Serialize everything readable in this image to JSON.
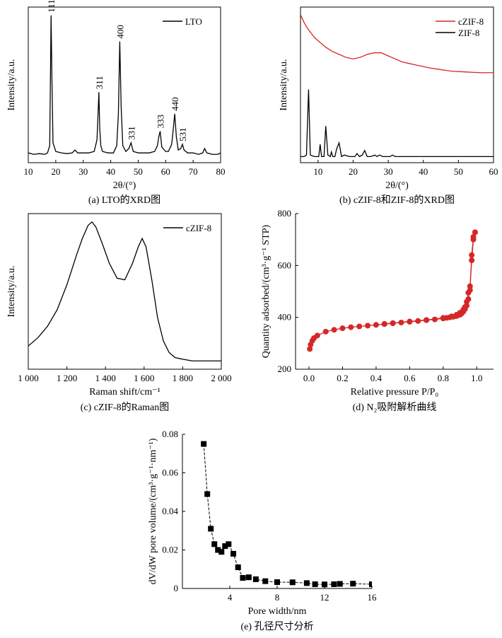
{
  "colors": {
    "axis": "#000000",
    "black_series": "#000000",
    "red_series": "#d62728"
  },
  "chart_data": [
    {
      "id": "a",
      "type": "line",
      "caption": "(a) LTO的XRD图",
      "xlabel": "2θ/(°)",
      "ylabel": "Intensity/a.u.",
      "xlim": [
        10,
        80
      ],
      "xticks": [
        10,
        20,
        30,
        40,
        50,
        60,
        70,
        80
      ],
      "y_ticks_shown": false,
      "legend": {
        "position": "top-right",
        "entries": [
          "LTO"
        ]
      },
      "series": [
        {
          "name": "LTO",
          "color": "#000000",
          "x": [
            10,
            12,
            14,
            16,
            17,
            17.8,
            18.3,
            18.6,
            19,
            20,
            22,
            24,
            26,
            27,
            28,
            30,
            32,
            34,
            35,
            35.4,
            35.7,
            36,
            36.4,
            37,
            39,
            41,
            42.2,
            42.8,
            43.3,
            43.8,
            44.4,
            45.5,
            46.6,
            47.4,
            48.2,
            50,
            52,
            54,
            56,
            57,
            57.5,
            58,
            58.6,
            60,
            61,
            62.2,
            62.8,
            63.3,
            63.9,
            64.6,
            65.5,
            66.1,
            66.7,
            68,
            70,
            72,
            73.5,
            74.2,
            75,
            77,
            79,
            80
          ],
          "y": [
            3,
            2,
            2.5,
            2,
            3,
            8,
            98,
            55,
            10,
            4,
            3,
            2.5,
            3,
            5,
            3,
            3,
            3,
            4,
            12,
            30,
            45,
            20,
            8,
            4,
            3,
            3,
            8,
            30,
            80,
            35,
            8,
            4,
            6,
            10,
            4,
            3,
            3,
            3,
            4,
            8,
            14,
            18,
            7,
            4,
            4,
            9,
            20,
            30,
            14,
            5,
            6,
            9,
            5,
            3,
            3,
            2,
            3,
            6,
            3,
            2,
            2,
            3
          ]
        }
      ],
      "annotations": [
        {
          "text": "111",
          "x": 18.3,
          "y": 98
        },
        {
          "text": "311",
          "x": 35.7,
          "y": 45
        },
        {
          "text": "400",
          "x": 43.3,
          "y": 80
        },
        {
          "text": "331",
          "x": 47.4,
          "y": 10
        },
        {
          "text": "333",
          "x": 58,
          "y": 18
        },
        {
          "text": "440",
          "x": 63.3,
          "y": 30
        },
        {
          "text": "531",
          "x": 66.1,
          "y": 9
        }
      ]
    },
    {
      "id": "b",
      "type": "line",
      "caption": "(b) cZIF-8和ZIF-8的XRD图",
      "xlabel": "2θ/(°)",
      "ylabel": "Intensity/a.u.",
      "xlim": [
        5,
        60
      ],
      "xticks": [
        10,
        20,
        30,
        40,
        50,
        60
      ],
      "y_ticks_shown": false,
      "legend": {
        "position": "top-right",
        "entries": [
          "cZIF-8",
          "ZIF-8"
        ]
      },
      "series": [
        {
          "name": "cZIF-8",
          "color": "#d62728",
          "x": [
            5,
            6,
            7,
            8,
            9,
            10,
            12,
            14,
            16,
            18,
            20,
            22,
            24,
            26,
            28,
            30,
            32,
            34,
            36,
            38,
            40,
            42,
            45,
            48,
            52,
            56,
            60
          ],
          "y": [
            95,
            90,
            86,
            83,
            80,
            78,
            74,
            71,
            69,
            67,
            66,
            67,
            69,
            70,
            70,
            68,
            66,
            64,
            63,
            62,
            61,
            60,
            59,
            58,
            57.5,
            57,
            57
          ]
        },
        {
          "name": "ZIF-8",
          "color": "#000000",
          "x": [
            5,
            6,
            6.7,
            7.3,
            7.8,
            9,
            10.2,
            10.6,
            11,
            11.7,
            12.2,
            12.8,
            13.5,
            13.8,
            14.2,
            14.8,
            15.3,
            16,
            16.7,
            17.5,
            19,
            20.5,
            21.1,
            21.8,
            22.6,
            23.3,
            24,
            25,
            26.2,
            26.8,
            27.5,
            28.5,
            29.5,
            30.5,
            31.2,
            32,
            35,
            40,
            45,
            50,
            55,
            60
          ],
          "y": [
            2,
            2,
            3,
            46,
            3,
            2,
            2,
            10,
            2,
            2,
            22,
            3,
            2,
            5,
            2,
            2,
            7,
            11,
            2,
            3,
            2,
            2,
            4,
            2,
            3,
            6,
            2,
            2,
            3,
            2,
            3,
            2,
            2,
            2,
            3,
            2,
            2,
            2,
            2,
            2,
            2,
            2
          ]
        }
      ]
    },
    {
      "id": "c",
      "type": "line",
      "caption": "(c) cZIF-8的Raman图",
      "xlabel": "Raman shift/cm⁻¹",
      "ylabel": "Intensity/a.u.",
      "xlim": [
        1000,
        2000
      ],
      "xticks": [
        1000,
        1200,
        1400,
        1600,
        1800,
        2000
      ],
      "xtick_labels": [
        "1 000",
        "1 200",
        "1 400",
        "1 600",
        "1 800",
        "2 000"
      ],
      "y_ticks_shown": false,
      "legend": {
        "position": "top-right",
        "entries": [
          "cZIF-8"
        ]
      },
      "series": [
        {
          "name": "cZIF-8",
          "color": "#000000",
          "x": [
            1000,
            1050,
            1100,
            1150,
            1200,
            1250,
            1280,
            1310,
            1330,
            1350,
            1380,
            1420,
            1460,
            1500,
            1540,
            1570,
            1590,
            1610,
            1640,
            1670,
            1700,
            1730,
            1760,
            1800,
            1850,
            1900,
            1950,
            2000
          ],
          "y": [
            15,
            20,
            27,
            37,
            52,
            70,
            80,
            88,
            90,
            87,
            78,
            65,
            56,
            55,
            65,
            75,
            80,
            75,
            55,
            32,
            18,
            11,
            8,
            7,
            6,
            6,
            6,
            6
          ]
        }
      ]
    },
    {
      "id": "d",
      "type": "scatter",
      "caption": "(d) N₂吸附解析曲线",
      "xlabel": "Relative pressure P/P₀",
      "ylabel": "Quantity adsorbed/(cm³·g⁻¹ STP)",
      "xlim": [
        -0.08,
        1.1
      ],
      "ylim": [
        200,
        800
      ],
      "xticks": [
        0.0,
        0.2,
        0.4,
        0.6,
        0.8,
        1.0
      ],
      "xtick_labels": [
        "0.0",
        "0.2",
        "0.4",
        "0.6",
        "0.8",
        "1.0"
      ],
      "yticks": [
        200,
        400,
        600,
        800
      ],
      "series": [
        {
          "name": "",
          "color": "#d62728",
          "x": [
            0.005,
            0.01,
            0.02,
            0.03,
            0.05,
            0.1,
            0.15,
            0.2,
            0.25,
            0.3,
            0.35,
            0.4,
            0.45,
            0.5,
            0.55,
            0.6,
            0.65,
            0.7,
            0.75,
            0.8,
            0.82,
            0.84,
            0.86,
            0.88,
            0.9,
            0.91,
            0.92,
            0.93,
            0.94,
            0.95,
            0.96,
            0.97,
            0.98,
            0.99
          ],
          "y": [
            278,
            295,
            310,
            320,
            330,
            345,
            352,
            358,
            362,
            365,
            368,
            371,
            374,
            377,
            380,
            383,
            386,
            389,
            392,
            396,
            398,
            400,
            402,
            405,
            410,
            415,
            422,
            432,
            445,
            470,
            520,
            620,
            700,
            728
          ]
        },
        {
          "name": "",
          "color": "#d62728",
          "x": [
            0.99,
            0.98,
            0.97,
            0.96,
            0.95,
            0.94,
            0.93,
            0.92,
            0.9,
            0.88,
            0.85,
            0.8,
            0.7,
            0.6,
            0.5,
            0.45
          ],
          "y": [
            728,
            710,
            640,
            505,
            495,
            460,
            440,
            430,
            418,
            410,
            404,
            398,
            390,
            384,
            378,
            375
          ]
        }
      ]
    },
    {
      "id": "e",
      "type": "line",
      "caption": "(e) 孔径尺寸分析",
      "xlabel": "Pore width/nm",
      "ylabel": "dV/dW pore volume/(cm³·g⁻¹·nm⁻¹)",
      "xlim": [
        0,
        16
      ],
      "ylim": [
        0,
        0.08
      ],
      "xticks": [
        4,
        8,
        12,
        16
      ],
      "xtick_labels": [
        "4",
        "8",
        "12",
        "16"
      ],
      "yticks": [
        0,
        0.02,
        0.04,
        0.06,
        0.08
      ],
      "ytick_labels": [
        "0",
        "0.02",
        "0.04",
        "0.06",
        "0.08"
      ],
      "series": [
        {
          "name": "",
          "color": "#000000",
          "x": [
            1.8,
            2.1,
            2.4,
            2.7,
            3.0,
            3.3,
            3.6,
            3.9,
            4.3,
            4.7,
            5.1,
            5.6,
            6.2,
            7.0,
            8.0,
            9.3,
            10.5,
            11.2,
            12.0,
            12.8,
            13.3,
            14.4,
            16.0
          ],
          "y": [
            0.075,
            0.049,
            0.031,
            0.023,
            0.02,
            0.019,
            0.022,
            0.023,
            0.018,
            0.011,
            0.0055,
            0.0058,
            0.0048,
            0.0038,
            0.0033,
            0.0032,
            0.0028,
            0.0022,
            0.0021,
            0.0022,
            0.0024,
            0.0025,
            0.0022
          ]
        }
      ]
    }
  ]
}
